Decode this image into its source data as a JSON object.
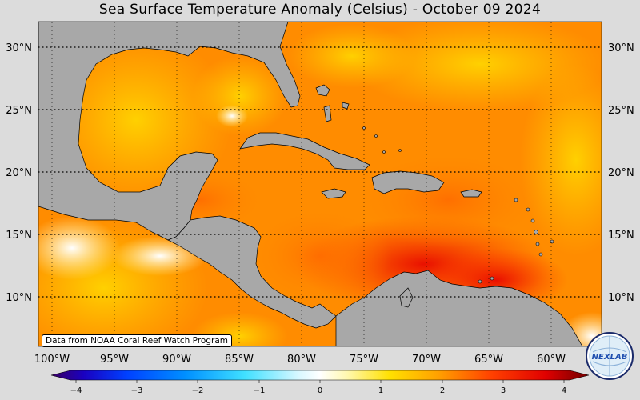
{
  "title": "Sea Surface Temperature Anomaly (Celsius) - October 09 2024",
  "credit": "Data from NOAA Coral Reef Watch Program",
  "logo_text": "NEXLAB",
  "colors": {
    "land": "#a8a8a8",
    "warm": "#ff7a00",
    "hot": "#f01a00",
    "mild": "#ffd000",
    "pale": "#fffbe0"
  },
  "lat_labels": [
    "30°N",
    "25°N",
    "20°N",
    "15°N",
    "10°N"
  ],
  "lon_labels": [
    "100°W",
    "95°W",
    "90°W",
    "85°W",
    "80°W",
    "75°W",
    "70°W",
    "65°W",
    "60°W"
  ],
  "colorbar": {
    "ticks": [
      "−4",
      "−3",
      "−2",
      "−1",
      "0",
      "1",
      "2",
      "3",
      "4"
    ],
    "range": [
      -4,
      4
    ]
  }
}
